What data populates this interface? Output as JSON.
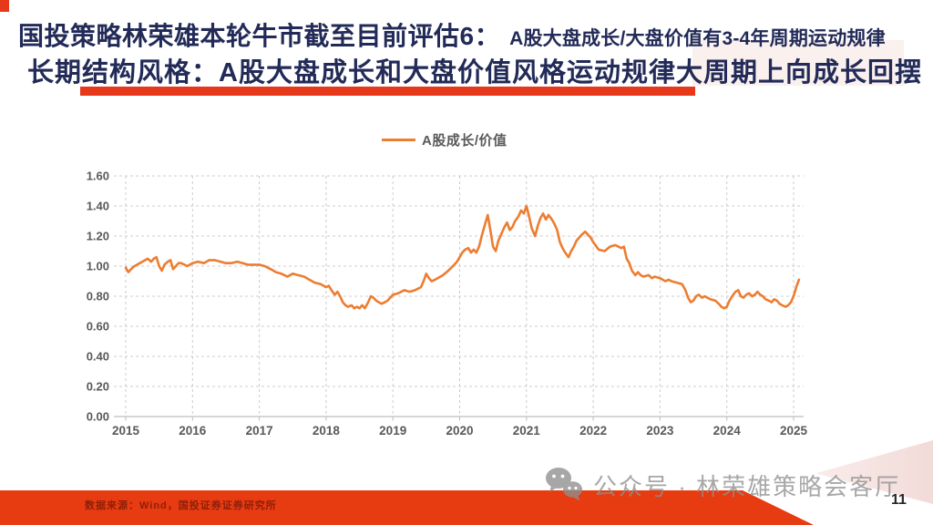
{
  "title": {
    "line1_main": "国投策略林荣雄本轮牛市截至目前评估6：",
    "line1_sub": "A股大盘成长/大盘价值有3-4年周期运动规律",
    "line2": "长期结构风格：A股大盘成长和大盘价值风格运动规律大周期上向成长回摆"
  },
  "footer": {
    "source": "数据来源：Wind，国投证券证券研究所",
    "page_number": "11"
  },
  "watermark": {
    "text": "公众号 · 林荣雄策略会客厅",
    "icon": "wechat-icon"
  },
  "colors": {
    "title_navy": "#222a57",
    "accent_red": "#e6391b",
    "footer_red": "#e73b11",
    "footer_text_red": "#8e2008",
    "line_orange": "#ED7D31",
    "axis_text_gray": "#595959",
    "grid_gray": "#cccccc",
    "watermark_gray": "#8f8f8f"
  },
  "chart_data": {
    "type": "line",
    "title": "",
    "legend": [
      "A股成长/价值"
    ],
    "legend_position": "top",
    "grid": "dashed",
    "x_ticks": [
      "2015",
      "2016",
      "2017",
      "2018",
      "2019",
      "2020",
      "2021",
      "2022",
      "2023",
      "2024",
      "2025"
    ],
    "y_ticks": [
      "0.00",
      "0.20",
      "0.40",
      "0.60",
      "0.80",
      "1.00",
      "1.20",
      "1.40",
      "1.60"
    ],
    "ylim": [
      0,
      1.6
    ],
    "xlim": [
      2015,
      2025.1
    ],
    "series": [
      {
        "name": "A股成长/价值",
        "color": "#ED7D31",
        "points": [
          [
            2015.0,
            0.99
          ],
          [
            2015.04,
            0.96
          ],
          [
            2015.08,
            0.98
          ],
          [
            2015.13,
            1.0
          ],
          [
            2015.17,
            1.01
          ],
          [
            2015.21,
            1.02
          ],
          [
            2015.25,
            1.03
          ],
          [
            2015.29,
            1.04
          ],
          [
            2015.33,
            1.05
          ],
          [
            2015.38,
            1.03
          ],
          [
            2015.42,
            1.05
          ],
          [
            2015.46,
            1.06
          ],
          [
            2015.5,
            1.0
          ],
          [
            2015.54,
            0.97
          ],
          [
            2015.58,
            1.01
          ],
          [
            2015.63,
            1.03
          ],
          [
            2015.67,
            1.04
          ],
          [
            2015.71,
            0.98
          ],
          [
            2015.75,
            1.0
          ],
          [
            2015.79,
            1.02
          ],
          [
            2015.83,
            1.02
          ],
          [
            2015.88,
            1.01
          ],
          [
            2015.92,
            1.0
          ],
          [
            2015.96,
            1.01
          ],
          [
            2016.0,
            1.02
          ],
          [
            2016.08,
            1.03
          ],
          [
            2016.17,
            1.02
          ],
          [
            2016.25,
            1.04
          ],
          [
            2016.33,
            1.04
          ],
          [
            2016.42,
            1.03
          ],
          [
            2016.5,
            1.02
          ],
          [
            2016.58,
            1.02
          ],
          [
            2016.67,
            1.03
          ],
          [
            2016.75,
            1.02
          ],
          [
            2016.83,
            1.01
          ],
          [
            2016.92,
            1.01
          ],
          [
            2017.0,
            1.01
          ],
          [
            2017.08,
            1.0
          ],
          [
            2017.17,
            0.98
          ],
          [
            2017.25,
            0.96
          ],
          [
            2017.33,
            0.95
          ],
          [
            2017.42,
            0.93
          ],
          [
            2017.5,
            0.95
          ],
          [
            2017.58,
            0.94
          ],
          [
            2017.67,
            0.93
          ],
          [
            2017.75,
            0.91
          ],
          [
            2017.83,
            0.89
          ],
          [
            2017.92,
            0.88
          ],
          [
            2018.0,
            0.86
          ],
          [
            2018.04,
            0.87
          ],
          [
            2018.08,
            0.84
          ],
          [
            2018.13,
            0.81
          ],
          [
            2018.17,
            0.83
          ],
          [
            2018.21,
            0.8
          ],
          [
            2018.25,
            0.76
          ],
          [
            2018.29,
            0.74
          ],
          [
            2018.33,
            0.73
          ],
          [
            2018.38,
            0.74
          ],
          [
            2018.42,
            0.72
          ],
          [
            2018.46,
            0.73
          ],
          [
            2018.5,
            0.72
          ],
          [
            2018.54,
            0.74
          ],
          [
            2018.58,
            0.72
          ],
          [
            2018.63,
            0.76
          ],
          [
            2018.67,
            0.8
          ],
          [
            2018.71,
            0.79
          ],
          [
            2018.75,
            0.77
          ],
          [
            2018.79,
            0.76
          ],
          [
            2018.83,
            0.75
          ],
          [
            2018.88,
            0.76
          ],
          [
            2018.92,
            0.77
          ],
          [
            2018.96,
            0.79
          ],
          [
            2019.0,
            0.81
          ],
          [
            2019.08,
            0.82
          ],
          [
            2019.17,
            0.84
          ],
          [
            2019.25,
            0.83
          ],
          [
            2019.33,
            0.84
          ],
          [
            2019.42,
            0.86
          ],
          [
            2019.46,
            0.9
          ],
          [
            2019.5,
            0.95
          ],
          [
            2019.54,
            0.92
          ],
          [
            2019.58,
            0.9
          ],
          [
            2019.63,
            0.91
          ],
          [
            2019.67,
            0.92
          ],
          [
            2019.75,
            0.94
          ],
          [
            2019.83,
            0.97
          ],
          [
            2019.92,
            1.01
          ],
          [
            2019.96,
            1.03
          ],
          [
            2020.0,
            1.06
          ],
          [
            2020.04,
            1.09
          ],
          [
            2020.08,
            1.11
          ],
          [
            2020.13,
            1.12
          ],
          [
            2020.17,
            1.09
          ],
          [
            2020.21,
            1.11
          ],
          [
            2020.25,
            1.09
          ],
          [
            2020.29,
            1.13
          ],
          [
            2020.33,
            1.2
          ],
          [
            2020.38,
            1.28
          ],
          [
            2020.42,
            1.34
          ],
          [
            2020.46,
            1.24
          ],
          [
            2020.5,
            1.13
          ],
          [
            2020.54,
            1.1
          ],
          [
            2020.58,
            1.17
          ],
          [
            2020.63,
            1.22
          ],
          [
            2020.67,
            1.26
          ],
          [
            2020.71,
            1.29
          ],
          [
            2020.75,
            1.24
          ],
          [
            2020.79,
            1.26
          ],
          [
            2020.83,
            1.3
          ],
          [
            2020.88,
            1.33
          ],
          [
            2020.92,
            1.37
          ],
          [
            2020.96,
            1.35
          ],
          [
            2021.0,
            1.4
          ],
          [
            2021.04,
            1.33
          ],
          [
            2021.08,
            1.25
          ],
          [
            2021.13,
            1.2
          ],
          [
            2021.17,
            1.27
          ],
          [
            2021.21,
            1.32
          ],
          [
            2021.25,
            1.35
          ],
          [
            2021.29,
            1.31
          ],
          [
            2021.33,
            1.34
          ],
          [
            2021.38,
            1.31
          ],
          [
            2021.42,
            1.28
          ],
          [
            2021.46,
            1.24
          ],
          [
            2021.5,
            1.16
          ],
          [
            2021.54,
            1.12
          ],
          [
            2021.58,
            1.09
          ],
          [
            2021.63,
            1.06
          ],
          [
            2021.67,
            1.1
          ],
          [
            2021.71,
            1.13
          ],
          [
            2021.75,
            1.17
          ],
          [
            2021.79,
            1.19
          ],
          [
            2021.83,
            1.21
          ],
          [
            2021.88,
            1.23
          ],
          [
            2021.92,
            1.21
          ],
          [
            2021.96,
            1.19
          ],
          [
            2022.0,
            1.16
          ],
          [
            2022.08,
            1.11
          ],
          [
            2022.17,
            1.1
          ],
          [
            2022.25,
            1.13
          ],
          [
            2022.33,
            1.14
          ],
          [
            2022.42,
            1.12
          ],
          [
            2022.46,
            1.13
          ],
          [
            2022.5,
            1.05
          ],
          [
            2022.54,
            1.02
          ],
          [
            2022.58,
            0.97
          ],
          [
            2022.63,
            0.94
          ],
          [
            2022.67,
            0.96
          ],
          [
            2022.71,
            0.94
          ],
          [
            2022.75,
            0.93
          ],
          [
            2022.83,
            0.94
          ],
          [
            2022.88,
            0.92
          ],
          [
            2022.92,
            0.93
          ],
          [
            2023.0,
            0.92
          ],
          [
            2023.08,
            0.9
          ],
          [
            2023.13,
            0.91
          ],
          [
            2023.17,
            0.9
          ],
          [
            2023.25,
            0.89
          ],
          [
            2023.33,
            0.88
          ],
          [
            2023.38,
            0.84
          ],
          [
            2023.42,
            0.79
          ],
          [
            2023.46,
            0.76
          ],
          [
            2023.5,
            0.77
          ],
          [
            2023.54,
            0.8
          ],
          [
            2023.58,
            0.81
          ],
          [
            2023.63,
            0.79
          ],
          [
            2023.67,
            0.8
          ],
          [
            2023.75,
            0.78
          ],
          [
            2023.83,
            0.77
          ],
          [
            2023.88,
            0.75
          ],
          [
            2023.92,
            0.73
          ],
          [
            2023.96,
            0.72
          ],
          [
            2024.0,
            0.73
          ],
          [
            2024.04,
            0.77
          ],
          [
            2024.08,
            0.8
          ],
          [
            2024.13,
            0.83
          ],
          [
            2024.17,
            0.84
          ],
          [
            2024.21,
            0.8
          ],
          [
            2024.25,
            0.79
          ],
          [
            2024.29,
            0.81
          ],
          [
            2024.33,
            0.82
          ],
          [
            2024.38,
            0.8
          ],
          [
            2024.42,
            0.81
          ],
          [
            2024.46,
            0.83
          ],
          [
            2024.5,
            0.81
          ],
          [
            2024.54,
            0.8
          ],
          [
            2024.58,
            0.78
          ],
          [
            2024.63,
            0.77
          ],
          [
            2024.67,
            0.76
          ],
          [
            2024.71,
            0.78
          ],
          [
            2024.75,
            0.77
          ],
          [
            2024.79,
            0.75
          ],
          [
            2024.83,
            0.74
          ],
          [
            2024.88,
            0.73
          ],
          [
            2024.92,
            0.74
          ],
          [
            2024.96,
            0.76
          ],
          [
            2025.0,
            0.8
          ],
          [
            2025.04,
            0.86
          ],
          [
            2025.08,
            0.91
          ]
        ]
      }
    ]
  }
}
